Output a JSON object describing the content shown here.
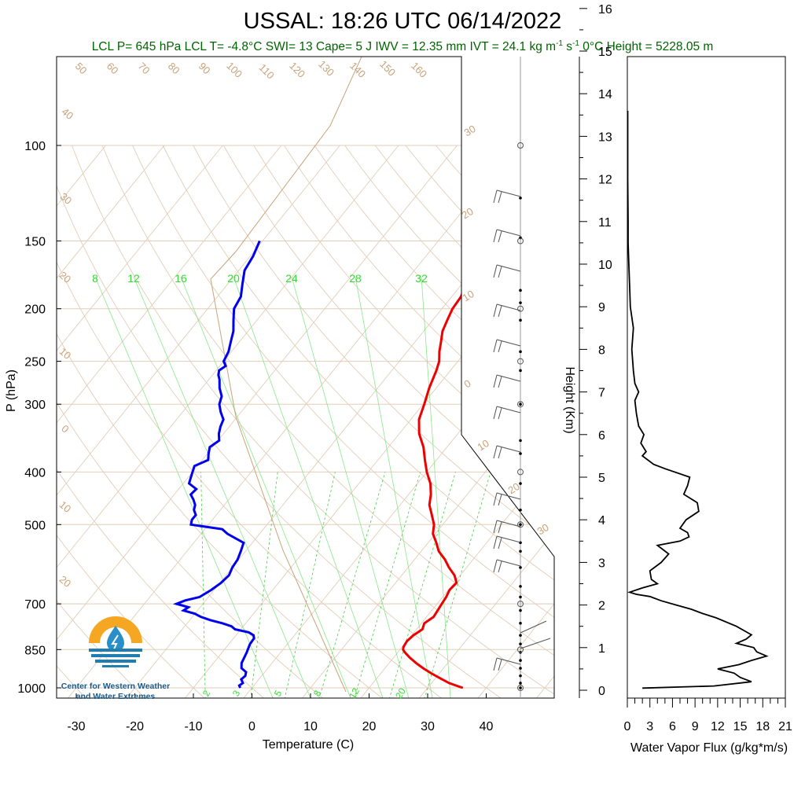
{
  "chart_data": [
    {
      "type": "skew-t",
      "title": "USSAL: 18:26 UTC 06/14/2022",
      "subtitle": {
        "lcl_p": "LCL P= 645 hPa",
        "lcl_t": "LCL T= -4.8°C",
        "swi": "SWI= 13",
        "cape": "Cape= 5 J",
        "iwv": "IWV = 12.35 mm",
        "ivt": "IVT = 24.1 kg m",
        "ivt_exp1": "-1",
        "ivt_s": " s",
        "ivt_exp2": "-1",
        "freezing": "0°C Height = 5228.05 m"
      },
      "xlabel": "Temperature (C)",
      "ylabel": "P (hPa)",
      "xlim": [
        -35,
        50
      ],
      "ylim": [
        1050,
        100
      ],
      "x_ticks": [
        "-30",
        "-20",
        "-10",
        "0",
        "10",
        "20",
        "30",
        "40"
      ],
      "p_ticks": [
        "100",
        "150",
        "200",
        "250",
        "300",
        "400",
        "500",
        "700",
        "850",
        "1000"
      ],
      "isotherm_labels": [
        "30",
        "20",
        "10",
        "0",
        "10",
        "20",
        "30",
        "50",
        "60",
        "70",
        "80",
        "90",
        "100",
        "110",
        "120",
        "130",
        "140",
        "150",
        "160",
        "40",
        "30",
        "20",
        "10",
        "0",
        "10",
        "20"
      ],
      "mixing_ratio_labels": [
        "8",
        "12",
        "16",
        "20",
        "24",
        "28",
        "32",
        "2",
        "3",
        "5",
        "8",
        "12",
        "20"
      ],
      "series": [
        {
          "name": "Temperature",
          "color": "#ee0000",
          "p": [
            1000,
            990,
            980,
            960,
            940,
            920,
            900,
            880,
            860,
            850,
            840,
            820,
            800,
            780,
            760,
            740,
            720,
            700,
            680,
            660,
            640,
            620,
            600,
            580,
            560,
            540,
            520,
            500,
            480,
            460,
            440,
            420,
            400,
            380,
            360,
            340,
            320,
            300,
            280,
            260,
            250,
            240,
            230,
            220,
            210,
            200,
            190,
            180,
            170,
            160,
            150
          ],
          "t": [
            36.0,
            34.5,
            33.0,
            30.8,
            28.6,
            26.5,
            24.6,
            22.8,
            21.2,
            20.5,
            20.2,
            20.0,
            20.3,
            21.0,
            20.5,
            21.2,
            21.0,
            20.8,
            20.6,
            20.2,
            20.4,
            19.0,
            17.0,
            15.2,
            13.0,
            11.4,
            9.6,
            8.5,
            6.8,
            5.0,
            3.8,
            2.2,
            0.0,
            -2.0,
            -4.0,
            -6.6,
            -8.6,
            -9.8,
            -11.2,
            -12.4,
            -13.2,
            -14.5,
            -15.6,
            -16.8,
            -17.5,
            -18.2,
            -18.4,
            -19.4,
            -20.6,
            -21.0,
            -22.0
          ]
        },
        {
          "name": "Dewpoint",
          "color": "#0000ee",
          "p": [
            1000,
            990,
            980,
            965,
            950,
            935,
            920,
            900,
            880,
            860,
            850,
            830,
            810,
            800,
            790,
            780,
            770,
            760,
            750,
            740,
            730,
            720,
            710,
            700,
            690,
            680,
            660,
            640,
            620,
            600,
            580,
            560,
            540,
            520,
            510,
            500,
            490,
            480,
            470,
            460,
            450,
            440,
            430,
            420,
            410,
            400,
            390,
            380,
            370,
            360,
            350,
            340,
            330,
            320,
            310,
            300,
            290,
            280,
            270,
            265,
            260,
            255,
            250,
            240,
            230,
            220,
            210,
            200,
            190,
            180,
            170,
            160,
            150
          ],
          "td": [
            -2.0,
            -2.5,
            -2.2,
            -3.0,
            -2.8,
            -3.2,
            -4.5,
            -5.2,
            -5.5,
            -5.8,
            -6.0,
            -6.4,
            -6.5,
            -7.0,
            -8.2,
            -11.0,
            -12.0,
            -14.0,
            -16.5,
            -18.5,
            -20.0,
            -22.4,
            -22.0,
            -24.5,
            -23.5,
            -21.5,
            -20.5,
            -19.8,
            -19.5,
            -20.0,
            -20.2,
            -20.8,
            -21.5,
            -25.5,
            -27.0,
            -33.0,
            -33.5,
            -33.5,
            -34.5,
            -35.0,
            -36.0,
            -37.2,
            -37.0,
            -39.0,
            -39.5,
            -40.0,
            -40.5,
            -39.0,
            -39.8,
            -40.5,
            -39.8,
            -40.8,
            -41.5,
            -42.0,
            -43.5,
            -44.8,
            -45.5,
            -47.0,
            -48.2,
            -49.0,
            -49.5,
            -49.0,
            -50.0,
            -50.5,
            -51.5,
            -52.5,
            -54.0,
            -55.5,
            -56.0,
            -57.5,
            -59.0,
            -59.5,
            -60.5
          ]
        }
      ]
    },
    {
      "type": "line",
      "xlabel": "Water Vapor Flux (g/kg*m/s)",
      "ylabel": "Height (Km)",
      "xlim": [
        0,
        21
      ],
      "ylim": [
        -0.3,
        16.4
      ],
      "x_ticks": [
        "0",
        "3",
        "6",
        "9",
        "12",
        "15",
        "18",
        "21"
      ],
      "y_ticks": [
        "0",
        "1",
        "2",
        "3",
        "4",
        "5",
        "6",
        "7",
        "8",
        "9",
        "10",
        "11",
        "12",
        "13",
        "14",
        "15",
        "16"
      ],
      "series": [
        {
          "color": "#000000",
          "height": [
            0.05,
            0.1,
            0.2,
            0.3,
            0.4,
            0.5,
            0.6,
            0.7,
            0.8,
            0.9,
            1.0,
            1.1,
            1.2,
            1.3,
            1.5,
            1.7,
            1.8,
            1.9,
            2.0,
            2.1,
            2.2,
            2.25,
            2.3,
            2.4,
            2.5,
            2.6,
            2.8,
            3.0,
            3.2,
            3.4,
            3.5,
            3.6,
            3.7,
            3.8,
            4.0,
            4.2,
            4.4,
            4.6,
            4.8,
            5.0,
            5.2,
            5.3,
            5.5,
            5.6,
            5.8,
            6.0,
            6.2,
            6.5,
            6.8,
            7.0,
            7.2,
            7.5,
            8.0,
            8.5,
            9.0,
            9.5,
            10.0,
            10.5,
            11.0,
            12.0,
            13.0,
            13.6
          ],
          "flux": [
            2.0,
            11.5,
            16.5,
            15.0,
            14.2,
            12.0,
            14.8,
            16.5,
            18.5,
            17.2,
            16.8,
            14.5,
            15.8,
            16.5,
            14.5,
            11.8,
            10.0,
            8.5,
            6.5,
            4.5,
            3.0,
            1.2,
            0.3,
            2.0,
            4.0,
            3.2,
            3.0,
            4.5,
            5.5,
            4.0,
            7.0,
            8.2,
            8.0,
            7.0,
            7.8,
            9.5,
            9.3,
            7.5,
            8.0,
            8.3,
            5.0,
            3.5,
            2.0,
            2.5,
            1.8,
            2.2,
            1.5,
            1.2,
            1.0,
            1.5,
            1.0,
            0.8,
            0.6,
            0.8,
            0.4,
            0.3,
            0.2,
            0.1,
            0.1,
            0.05,
            0.05,
            0.05
          ]
        }
      ]
    }
  ],
  "logo": {
    "line1": "Center for Western Weather",
    "line2": "and Water Extremes"
  }
}
